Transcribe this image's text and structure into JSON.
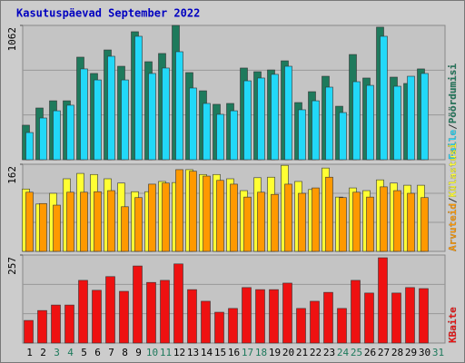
{
  "chart_data": [
    {
      "type": "bar",
      "title": "Kasutuspäevad September 2022",
      "ylim": [
        0,
        1062
      ],
      "yticks": [
        1062
      ],
      "separator": "/",
      "series": [
        {
          "name": "Pöördumisi",
          "color": "#1e7a5c",
          "values": [
            273,
            409,
            466,
            466,
            811,
            682,
            868,
            739,
            1012,
            775,
            840,
            1062,
            689,
            545,
            438,
            445,
            725,
            696,
            710,
            782,
            452,
            538,
            660,
            423,
            832,
            646,
            1048,
            653,
            603,
            718,
            null
          ]
        },
        {
          "name": "Faile",
          "color": "#22d8f8",
          "values": [
            215,
            330,
            387,
            431,
            718,
            631,
            818,
            631,
            976,
            682,
            725,
            854,
            567,
            445,
            359,
            387,
            624,
            646,
            675,
            739,
            395,
            466,
            574,
            373,
            617,
            588,
            976,
            581,
            660,
            682,
            null
          ]
        }
      ]
    },
    {
      "type": "bar",
      "ylim": [
        0,
        162
      ],
      "yticks": [
        162
      ],
      "separator": "/",
      "series": [
        {
          "name": "Külastusi",
          "color": "#ffff33",
          "values": [
            116,
            88,
            108,
            135,
            145,
            143,
            135,
            127,
            111,
            111,
            130,
            128,
            152,
            143,
            143,
            135,
            113,
            137,
            138,
            160,
            130,
            115,
            155,
            101,
            118,
            113,
            133,
            127,
            123,
            123,
            null
          ]
        },
        {
          "name": "Arvuteid",
          "color": "#ff9900",
          "values": [
            110,
            89,
            86,
            110,
            110,
            111,
            113,
            83,
            100,
            125,
            127,
            152,
            149,
            140,
            132,
            125,
            101,
            110,
            106,
            125,
            108,
            118,
            138,
            100,
            110,
            101,
            120,
            113,
            108,
            100,
            null
          ]
        }
      ]
    },
    {
      "type": "bar",
      "ylim": [
        0,
        257
      ],
      "yticks": [
        257
      ],
      "categories": [
        "1",
        "2",
        "3",
        "4",
        "5",
        "6",
        "7",
        "8",
        "9",
        "10",
        "11",
        "12",
        "13",
        "14",
        "15",
        "16",
        "17",
        "18",
        "19",
        "20",
        "21",
        "22",
        "23",
        "24",
        "25",
        "26",
        "27",
        "28",
        "29",
        "30",
        "31"
      ],
      "category_colors": [
        "#000000",
        "#000000",
        "#1e7a5c",
        "#1e7a5c",
        "#000000",
        "#000000",
        "#000000",
        "#000000",
        "#000000",
        "#1e7a5c",
        "#1e7a5c",
        "#000000",
        "#000000",
        "#000000",
        "#000000",
        "#000000",
        "#1e7a5c",
        "#1e7a5c",
        "#000000",
        "#000000",
        "#000000",
        "#000000",
        "#000000",
        "#1e7a5c",
        "#1e7a5c",
        "#000000",
        "#000000",
        "#000000",
        "#000000",
        "#000000",
        "#1e7a5c"
      ],
      "series": [
        {
          "name": "KBaite",
          "color": "#ee1111",
          "values": [
            66,
            95,
            111,
            111,
            183,
            154,
            194,
            151,
            225,
            177,
            183,
            231,
            156,
            122,
            90,
            101,
            162,
            156,
            156,
            175,
            101,
            122,
            148,
            101,
            183,
            146,
            249,
            146,
            162,
            159,
            null
          ]
        }
      ]
    }
  ]
}
